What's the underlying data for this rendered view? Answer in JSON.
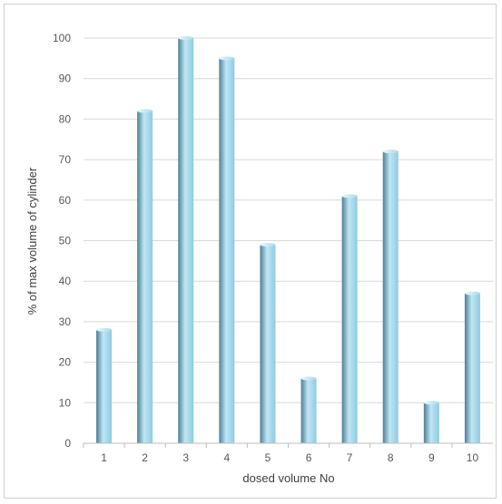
{
  "chart_data": {
    "type": "bar",
    "title": "",
    "xlabel": "dosed volume No",
    "ylabel": "% of max volume of cylinder",
    "categories": [
      "1",
      "2",
      "3",
      "4",
      "5",
      "6",
      "7",
      "8",
      "9",
      "10"
    ],
    "values": [
      28,
      82,
      100,
      95,
      49,
      16,
      61,
      72,
      10,
      37
    ],
    "ylim": [
      0,
      100
    ],
    "yticks": [
      "0",
      "10",
      "20",
      "30",
      "40",
      "50",
      "60",
      "70",
      "80",
      "90",
      "100"
    ],
    "grid": "horizontal",
    "legend": "none",
    "colors": {
      "bar_light": "#bfe6f4",
      "bar_mid": "#8ecbe2",
      "bar_dark": "#4d7f98",
      "gridline": "#d9d9d9",
      "axis": "#bfbfbf"
    }
  }
}
